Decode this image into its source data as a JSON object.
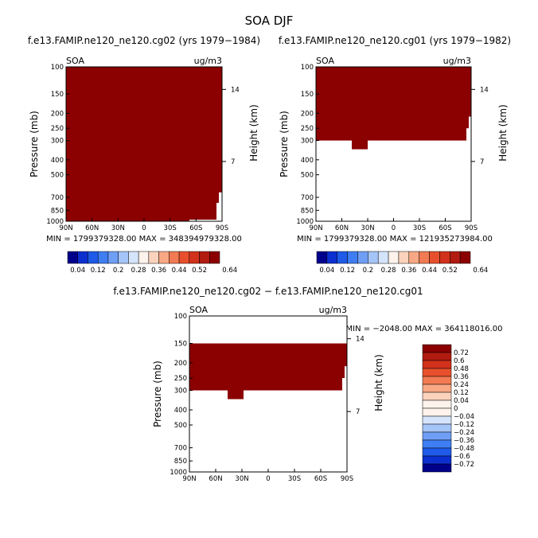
{
  "figure_title": "SOA DJF",
  "colors": {
    "fill": "#8b0000",
    "background": "#ffffff",
    "axis": "#000000"
  },
  "palette": [
    "#00008b",
    "#0c2fd0",
    "#1f5ae8",
    "#3f7ef2",
    "#6f9ef5",
    "#a5c4f7",
    "#d4e4fb",
    "#fdf3ec",
    "#fbd3bc",
    "#f8a884",
    "#f27b53",
    "#e8502d",
    "#d2311b",
    "#b21b10",
    "#8b0000"
  ],
  "chart_data": [
    {
      "id": "top-left",
      "type": "heatmap",
      "title": "f.e13.FAMIP.ne120_ne120.cg02 (yrs 1979−1984)",
      "left_label": "SOA",
      "right_label": "ug/m3",
      "ylabel": "Pressure (mb)",
      "y2label": "Height (km)",
      "x_ticks": [
        "90N",
        "60N",
        "30N",
        "0",
        "30S",
        "60S",
        "90S"
      ],
      "y_ticks": [
        "100",
        "150",
        "200",
        "250",
        "300",
        "400",
        "500",
        "700",
        "850",
        "1000"
      ],
      "y2_ticks": [
        "14",
        "7"
      ],
      "stats": "MIN = 1799379328.00   MAX = 348394979328.00",
      "filled_pressure_range": [
        100,
        1000
      ],
      "colorbar_labels": [
        "0.04",
        "0.12",
        "0.2",
        "0.28",
        "0.36",
        "0.44",
        "0.52",
        "0.64"
      ]
    },
    {
      "id": "top-right",
      "type": "heatmap",
      "title": "f.e13.FAMIP.ne120_ne120.cg01 (yrs 1979−1982)",
      "left_label": "SOA",
      "right_label": "ug/m3",
      "ylabel": "Pressure (mb)",
      "y2label": "Height (km)",
      "x_ticks": [
        "90N",
        "60N",
        "30N",
        "0",
        "30S",
        "60S",
        "90S"
      ],
      "y_ticks": [
        "100",
        "150",
        "200",
        "250",
        "300",
        "400",
        "500",
        "700",
        "850",
        "1000"
      ],
      "y2_ticks": [
        "14",
        "7"
      ],
      "stats": "MIN = 1799379328.00   MAX = 121935273984.00",
      "filled_pressure_range": [
        100,
        300
      ],
      "colorbar_labels": [
        "0.04",
        "0.12",
        "0.2",
        "0.28",
        "0.36",
        "0.44",
        "0.52",
        "0.64"
      ]
    },
    {
      "id": "bottom",
      "type": "heatmap",
      "title": "f.e13.FAMIP.ne120_ne120.cg02 − f.e13.FAMIP.ne120_ne120.cg01",
      "left_label": "SOA",
      "right_label": "ug/m3",
      "ylabel": "Pressure (mb)",
      "y2label": "Height (km)",
      "x_ticks": [
        "90N",
        "60N",
        "30N",
        "0",
        "30S",
        "60S",
        "90S"
      ],
      "y_ticks": [
        "100",
        "150",
        "200",
        "250",
        "300",
        "400",
        "500",
        "700",
        "850",
        "1000"
      ],
      "y2_ticks": [
        "14",
        "7"
      ],
      "stats": "MIN = −2048.00   MAX = 364118016.00",
      "filled_pressure_range": [
        150,
        300
      ],
      "colorbar_labels": [
        "0.72",
        "0.6",
        "0.48",
        "0.36",
        "0.24",
        "0.12",
        "0.04",
        "0",
        "−0.04",
        "−0.12",
        "−0.24",
        "−0.36",
        "−0.48",
        "−0.6",
        "−0.72"
      ]
    }
  ]
}
